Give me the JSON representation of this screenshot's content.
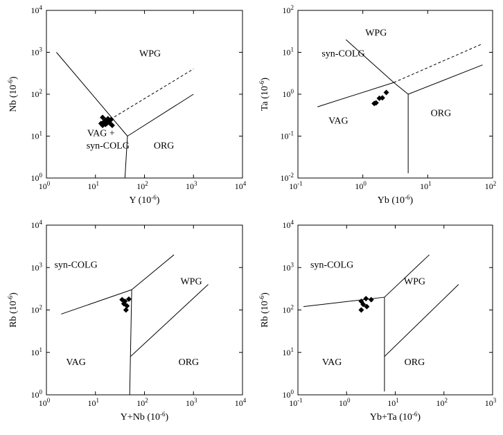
{
  "chart_data": [
    {
      "type": "scatter",
      "title": "",
      "xlabel": "Y (10⁻⁶)",
      "ylabel": "Nb (10⁻⁶)",
      "x_scale": "log",
      "y_scale": "log",
      "xlim": [
        1,
        10000
      ],
      "ylim": [
        1,
        10000
      ],
      "x_ticks": [
        {
          "base": "10",
          "exp": "0"
        },
        {
          "base": "10",
          "exp": "1"
        },
        {
          "base": "10",
          "exp": "2"
        },
        {
          "base": "10",
          "exp": "3"
        },
        {
          "base": "10",
          "exp": "4"
        }
      ],
      "y_ticks": [
        {
          "base": "10",
          "exp": "0"
        },
        {
          "base": "10",
          "exp": "1"
        },
        {
          "base": "10",
          "exp": "2"
        },
        {
          "base": "10",
          "exp": "3"
        },
        {
          "base": "10",
          "exp": "4"
        }
      ],
      "boundaries": [
        [
          [
            1.6,
            1000
          ],
          [
            45,
            10
          ]
        ],
        [
          [
            45,
            10
          ],
          [
            1000,
            100
          ]
        ],
        [
          [
            45,
            10
          ],
          [
            40,
            1
          ]
        ]
      ],
      "dashed_boundaries": [
        [
          [
            20,
            25
          ],
          [
            1000,
            400
          ]
        ]
      ],
      "regions": [
        {
          "text": "WPG",
          "x": 130,
          "y": 800
        },
        {
          "text": "VAG +",
          "x": 13,
          "y": 10
        },
        {
          "text": "syn-COLG",
          "x": 18,
          "y": 5
        },
        {
          "text": "ORG",
          "x": 250,
          "y": 5
        }
      ],
      "points": [
        [
          14,
          28
        ],
        [
          16,
          24
        ],
        [
          18,
          26
        ],
        [
          21,
          25
        ],
        [
          15,
          22
        ],
        [
          17,
          20
        ],
        [
          19,
          22
        ],
        [
          14,
          18
        ],
        [
          16,
          19
        ],
        [
          20,
          20
        ],
        [
          22,
          18
        ],
        [
          13,
          20
        ]
      ]
    },
    {
      "type": "scatter",
      "title": "",
      "xlabel": "Yb (10⁻⁶)",
      "ylabel": "Ta (10⁻⁶)",
      "x_scale": "log",
      "y_scale": "log",
      "xlim": [
        0.1,
        100
      ],
      "ylim": [
        0.01,
        100
      ],
      "x_ticks": [
        {
          "base": "10",
          "exp": "-1"
        },
        {
          "base": "10",
          "exp": "0"
        },
        {
          "base": "10",
          "exp": "1"
        },
        {
          "base": "10",
          "exp": "2"
        }
      ],
      "y_ticks": [
        {
          "base": "10",
          "exp": "-2"
        },
        {
          "base": "10",
          "exp": "-1"
        },
        {
          "base": "10",
          "exp": "0"
        },
        {
          "base": "10",
          "exp": "1"
        },
        {
          "base": "10",
          "exp": "2"
        }
      ],
      "boundaries": [
        [
          [
            0.55,
            20
          ],
          [
            3,
            1.9
          ]
        ],
        [
          [
            3,
            1.9
          ],
          [
            5,
            1
          ]
        ],
        [
          [
            0.2,
            0.5
          ],
          [
            3,
            1.9
          ]
        ],
        [
          [
            5,
            1
          ],
          [
            70,
            5
          ]
        ],
        [
          [
            5,
            1
          ],
          [
            5,
            0.013
          ]
        ]
      ],
      "dashed_boundaries": [
        [
          [
            3,
            1.9
          ],
          [
            70,
            16
          ]
        ]
      ],
      "regions": [
        {
          "text": "WPG",
          "x": 1.6,
          "y": 25
        },
        {
          "text": "syn-COLG",
          "x": 0.5,
          "y": 8
        },
        {
          "text": "VAG",
          "x": 0.42,
          "y": 0.2
        },
        {
          "text": "ORG",
          "x": 16,
          "y": 0.3
        }
      ],
      "points": [
        [
          1.5,
          0.6
        ],
        [
          1.6,
          0.62
        ],
        [
          1.8,
          0.8
        ],
        [
          2.0,
          0.82
        ],
        [
          2.3,
          1.1
        ]
      ]
    },
    {
      "type": "scatter",
      "title": "",
      "xlabel": "Y+Nb (10⁻⁶)",
      "ylabel": "Rb (10⁻⁶)",
      "x_scale": "log",
      "y_scale": "log",
      "xlim": [
        1,
        10000
      ],
      "ylim": [
        1,
        10000
      ],
      "x_ticks": [
        {
          "base": "10",
          "exp": "0"
        },
        {
          "base": "10",
          "exp": "1"
        },
        {
          "base": "10",
          "exp": "2"
        },
        {
          "base": "10",
          "exp": "3"
        },
        {
          "base": "10",
          "exp": "4"
        }
      ],
      "y_ticks": [
        {
          "base": "10",
          "exp": "0"
        },
        {
          "base": "10",
          "exp": "1"
        },
        {
          "base": "10",
          "exp": "2"
        },
        {
          "base": "10",
          "exp": "3"
        },
        {
          "base": "10",
          "exp": "4"
        }
      ],
      "boundaries": [
        [
          [
            2,
            80
          ],
          [
            55,
            300
          ]
        ],
        [
          [
            55,
            300
          ],
          [
            400,
            2000
          ]
        ],
        [
          [
            55,
            300
          ],
          [
            50,
            1
          ]
        ],
        [
          [
            52,
            8
          ],
          [
            2000,
            400
          ]
        ]
      ],
      "dashed_boundaries": [],
      "regions": [
        {
          "text": "syn-COLG",
          "x": 4,
          "y": 1000
        },
        {
          "text": "WPG",
          "x": 900,
          "y": 400
        },
        {
          "text": "VAG",
          "x": 4,
          "y": 5
        },
        {
          "text": "ORG",
          "x": 800,
          "y": 5
        }
      ],
      "points": [
        [
          35,
          175
        ],
        [
          40,
          160
        ],
        [
          48,
          180
        ],
        [
          38,
          140
        ],
        [
          44,
          125
        ],
        [
          42,
          100
        ]
      ]
    },
    {
      "type": "scatter",
      "title": "",
      "xlabel": "Yb+Ta (10⁻⁶)",
      "ylabel": "Rb (10⁻⁶)",
      "x_scale": "log",
      "y_scale": "log",
      "xlim": [
        0.1,
        1000
      ],
      "ylim": [
        1,
        10000
      ],
      "x_ticks": [
        {
          "base": "10",
          "exp": "-1"
        },
        {
          "base": "10",
          "exp": "0"
        },
        {
          "base": "10",
          "exp": "1"
        },
        {
          "base": "10",
          "exp": "2"
        },
        {
          "base": "10",
          "exp": "3"
        }
      ],
      "y_ticks": [
        {
          "base": "10",
          "exp": "0"
        },
        {
          "base": "10",
          "exp": "1"
        },
        {
          "base": "10",
          "exp": "2"
        },
        {
          "base": "10",
          "exp": "3"
        },
        {
          "base": "10",
          "exp": "4"
        }
      ],
      "boundaries": [
        [
          [
            0.13,
            120
          ],
          [
            6,
            200
          ]
        ],
        [
          [
            6,
            200
          ],
          [
            50,
            2000
          ]
        ],
        [
          [
            6,
            200
          ],
          [
            6,
            1.2
          ]
        ],
        [
          [
            6,
            8
          ],
          [
            200,
            400
          ]
        ]
      ],
      "dashed_boundaries": [],
      "regions": [
        {
          "text": "syn-COLG",
          "x": 0.5,
          "y": 1000
        },
        {
          "text": "WPG",
          "x": 25,
          "y": 400
        },
        {
          "text": "VAG",
          "x": 0.5,
          "y": 5
        },
        {
          "text": "ORG",
          "x": 25,
          "y": 5
        }
      ],
      "points": [
        [
          2.0,
          160
        ],
        [
          2.5,
          185
        ],
        [
          3.2,
          175
        ],
        [
          2.2,
          135
        ],
        [
          2.6,
          120
        ],
        [
          2.0,
          100
        ]
      ]
    }
  ]
}
